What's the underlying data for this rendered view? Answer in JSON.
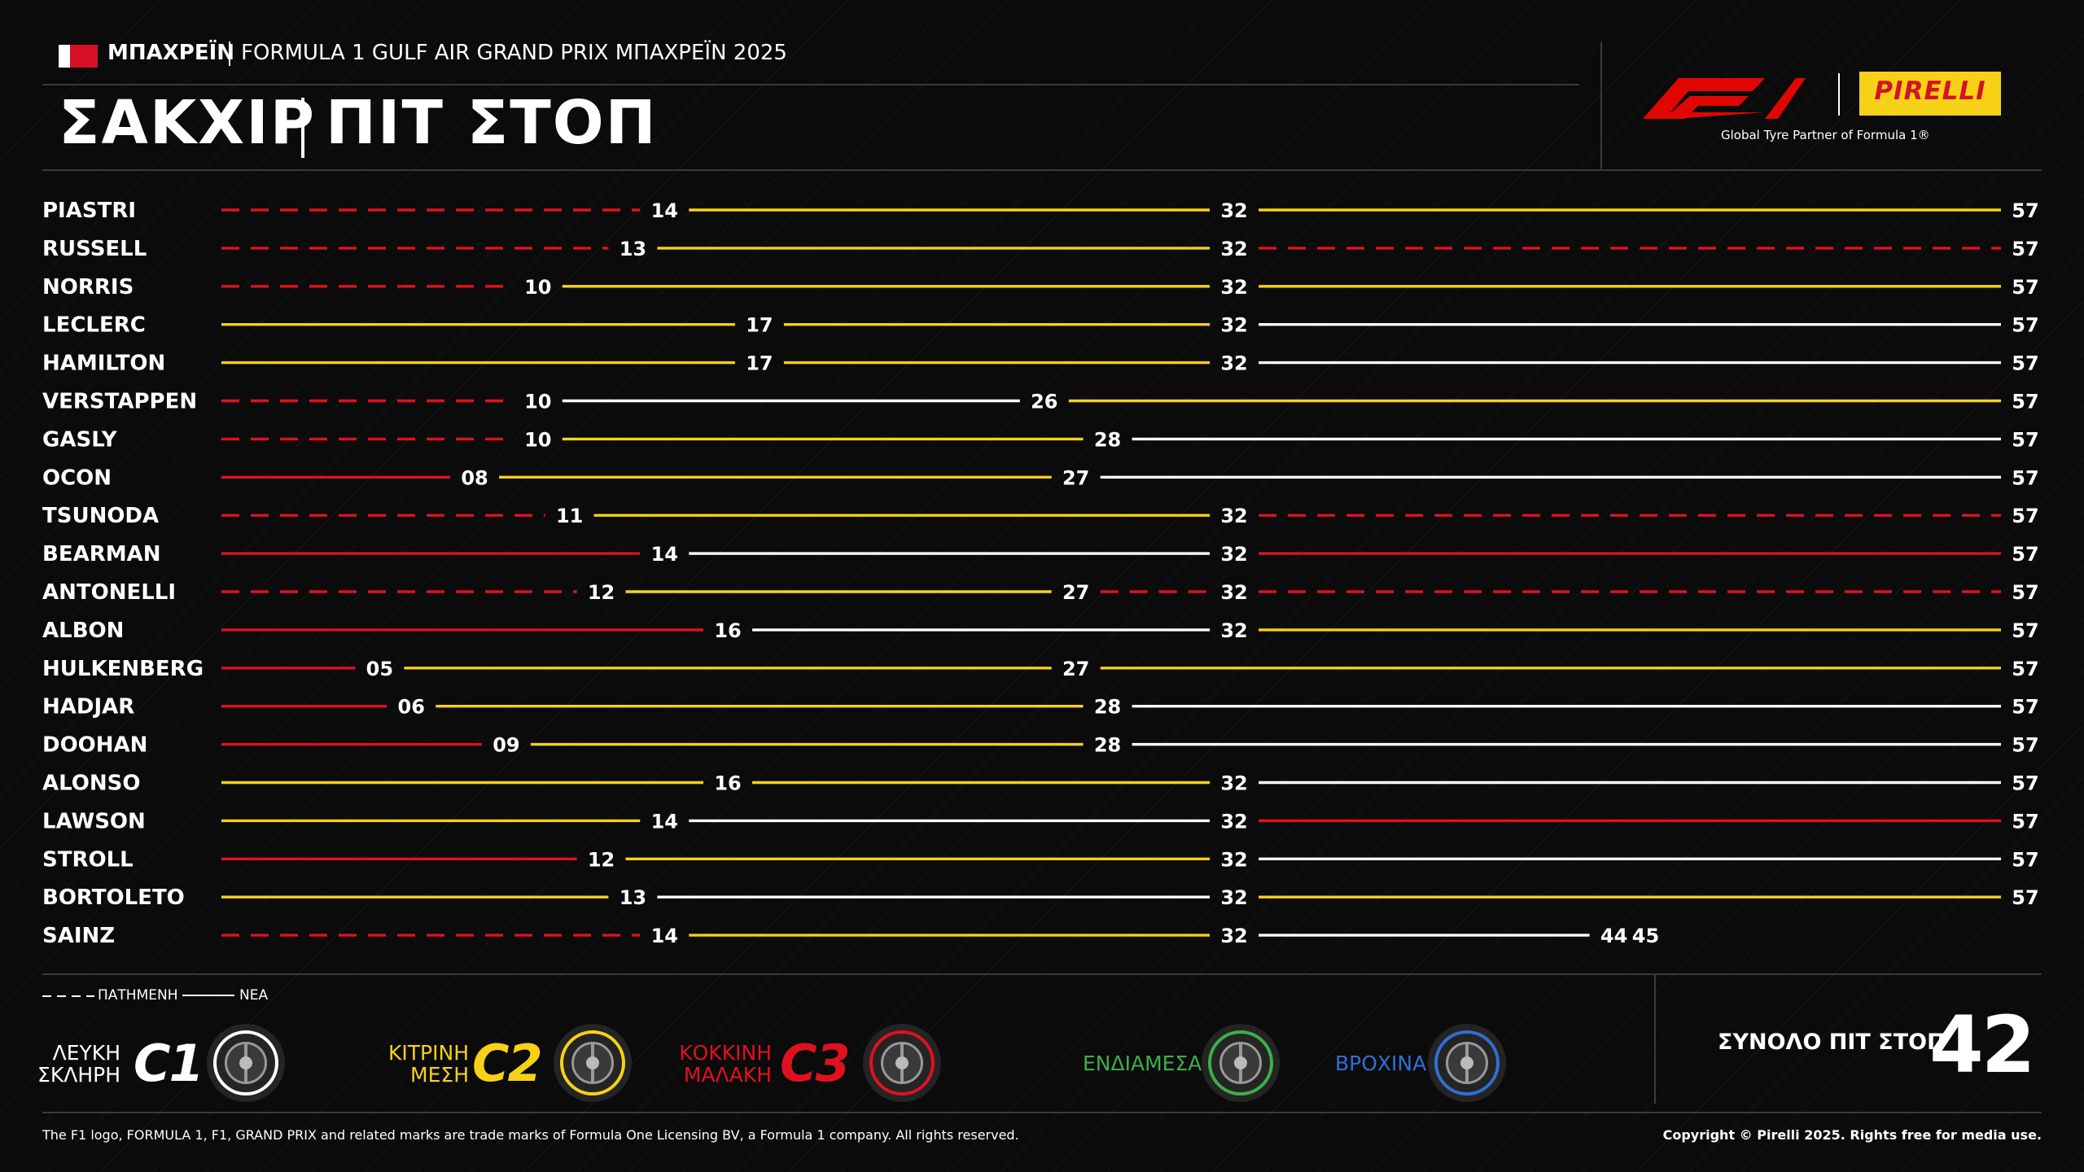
{
  "header": {
    "country": "ΜΠΑΧΡΕΪΝ",
    "event": "FORMULA 1 GULF AIR GRAND PRIX ΜΠΑΧΡΕΪΝ 2025",
    "title_left": "ΣΑΚΧΙΡ",
    "title_right": "ΠΙΤ ΣΤΟΠ",
    "pirelli_logo_text": "PIRELLI",
    "tagline": "Global Tyre Partner of Formula 1®"
  },
  "colors": {
    "C1": "#ffffff",
    "C2": "#f7d117",
    "C3": "#e0111f",
    "intermediate": "#3fae49",
    "wet": "#2f6fd6"
  },
  "chart_data": {
    "type": "table",
    "total_laps": 57,
    "stint_format": "stints listed as [compound, new/used, end lap]",
    "rows": [
      {
        "driver": "PIASTRI",
        "stints": [
          [
            "C3",
            "used",
            14
          ],
          [
            "C2",
            "new",
            32
          ],
          [
            "C2",
            "new",
            57
          ]
        ]
      },
      {
        "driver": "RUSSELL",
        "stints": [
          [
            "C3",
            "used",
            13
          ],
          [
            "C2",
            "new",
            32
          ],
          [
            "C3",
            "used",
            57
          ]
        ]
      },
      {
        "driver": "NORRIS",
        "stints": [
          [
            "C3",
            "used",
            10
          ],
          [
            "C2",
            "new",
            32
          ],
          [
            "C2",
            "new",
            57
          ]
        ]
      },
      {
        "driver": "LECLERC",
        "stints": [
          [
            "C2",
            "new",
            17
          ],
          [
            "C2",
            "new",
            32
          ],
          [
            "C1",
            "new",
            57
          ]
        ]
      },
      {
        "driver": "HAMILTON",
        "stints": [
          [
            "C2",
            "new",
            17
          ],
          [
            "C2",
            "new",
            32
          ],
          [
            "C1",
            "new",
            57
          ]
        ]
      },
      {
        "driver": "VERSTAPPEN",
        "stints": [
          [
            "C3",
            "used",
            10
          ],
          [
            "C1",
            "new",
            26
          ],
          [
            "C2",
            "new",
            57
          ]
        ]
      },
      {
        "driver": "GASLY",
        "stints": [
          [
            "C3",
            "used",
            10
          ],
          [
            "C2",
            "new",
            28
          ],
          [
            "C1",
            "new",
            57
          ]
        ]
      },
      {
        "driver": "OCON",
        "stints": [
          [
            "C3",
            "new",
            8
          ],
          [
            "C2",
            "new",
            27
          ],
          [
            "C1",
            "new",
            57
          ]
        ]
      },
      {
        "driver": "TSUNODA",
        "stints": [
          [
            "C3",
            "used",
            11
          ],
          [
            "C2",
            "new",
            32
          ],
          [
            "C3",
            "used",
            57
          ]
        ]
      },
      {
        "driver": "BEARMAN",
        "stints": [
          [
            "C3",
            "new",
            14
          ],
          [
            "C1",
            "new",
            32
          ],
          [
            "C3",
            "new",
            57
          ]
        ]
      },
      {
        "driver": "ANTONELLI",
        "stints": [
          [
            "C3",
            "used",
            12
          ],
          [
            "C2",
            "new",
            27
          ],
          [
            "C3",
            "used",
            32
          ],
          [
            "C3",
            "used",
            57
          ]
        ]
      },
      {
        "driver": "ALBON",
        "stints": [
          [
            "C3",
            "new",
            16
          ],
          [
            "C1",
            "new",
            32
          ],
          [
            "C2",
            "new",
            57
          ]
        ]
      },
      {
        "driver": "HULKENBERG",
        "stints": [
          [
            "C3",
            "new",
            5
          ],
          [
            "C2",
            "new",
            27
          ],
          [
            "C2",
            "new",
            57
          ]
        ]
      },
      {
        "driver": "HADJAR",
        "stints": [
          [
            "C3",
            "new",
            6
          ],
          [
            "C2",
            "new",
            28
          ],
          [
            "C1",
            "new",
            57
          ]
        ]
      },
      {
        "driver": "DOOHAN",
        "stints": [
          [
            "C3",
            "new",
            9
          ],
          [
            "C2",
            "new",
            28
          ],
          [
            "C1",
            "new",
            57
          ]
        ]
      },
      {
        "driver": "ALONSO",
        "stints": [
          [
            "C2",
            "new",
            16
          ],
          [
            "C2",
            "new",
            32
          ],
          [
            "C1",
            "new",
            57
          ]
        ]
      },
      {
        "driver": "LAWSON",
        "stints": [
          [
            "C2",
            "new",
            14
          ],
          [
            "C1",
            "new",
            32
          ],
          [
            "C3",
            "new",
            57
          ]
        ]
      },
      {
        "driver": "STROLL",
        "stints": [
          [
            "C3",
            "new",
            12
          ],
          [
            "C2",
            "new",
            32
          ],
          [
            "C1",
            "new",
            57
          ]
        ]
      },
      {
        "driver": "BORTOLETO",
        "stints": [
          [
            "C2",
            "new",
            13
          ],
          [
            "C1",
            "new",
            32
          ],
          [
            "C2",
            "new",
            57
          ]
        ]
      },
      {
        "driver": "SAINZ",
        "stints": [
          [
            "C3",
            "used",
            14
          ],
          [
            "C2",
            "new",
            32
          ],
          [
            "C1",
            "new",
            44
          ],
          [
            "C3",
            "used",
            45
          ]
        ]
      }
    ],
    "lap_labels": [
      [
        "14",
        "32",
        "57"
      ],
      [
        "13",
        "32",
        "57"
      ],
      [
        "10",
        "32",
        "57"
      ],
      [
        "17",
        "32",
        "57"
      ],
      [
        "17",
        "32",
        "57"
      ],
      [
        "10",
        "26",
        "57"
      ],
      [
        "10",
        "28",
        "57"
      ],
      [
        "08",
        "27",
        "57"
      ],
      [
        "11",
        "32",
        "57"
      ],
      [
        "14",
        "32",
        "57"
      ],
      [
        "12",
        "27",
        "32",
        "57"
      ],
      [
        "16",
        "32",
        "57"
      ],
      [
        "05",
        "27",
        "57"
      ],
      [
        "06",
        "28",
        "57"
      ],
      [
        "09",
        "28",
        "57"
      ],
      [
        "16",
        "32",
        "57"
      ],
      [
        "14",
        "32",
        "57"
      ],
      [
        "12",
        "32",
        "57"
      ],
      [
        "13",
        "32",
        "57"
      ],
      [
        "14",
        "32",
        "44",
        "45"
      ]
    ]
  },
  "legend": {
    "used": "ΠΑΤΗΜΕΝΗ",
    "new": "ΝΕΑ",
    "compounds": [
      {
        "line1": "ΛΕΥΚΗ",
        "line2": "ΣΚΛΗΡΗ",
        "code": "C1"
      },
      {
        "line1": "ΚΙΤΡΙΝΗ",
        "line2": "ΜΕΣΗ",
        "code": "C2"
      },
      {
        "line1": "ΚΟΚΚΙΝΗ",
        "line2": "ΜΑΛΑΚΗ",
        "code": "C3"
      }
    ],
    "intermediate": "ΕΝΔΙΑΜΕΣΑ",
    "wet": "ΒΡΟΧΙΝΑ"
  },
  "total": {
    "label": "ΣΥΝΟΛΟ ΠΙΤ ΣΤΟΠ",
    "value": "42"
  },
  "footer": {
    "left": "The F1 logo, FORMULA 1, F1, GRAND PRIX and related marks are trade marks of Formula One Licensing BV, a Formula 1 company. All rights reserved.",
    "right": "Copyright © Pirelli 2025. Rights free for media use."
  }
}
